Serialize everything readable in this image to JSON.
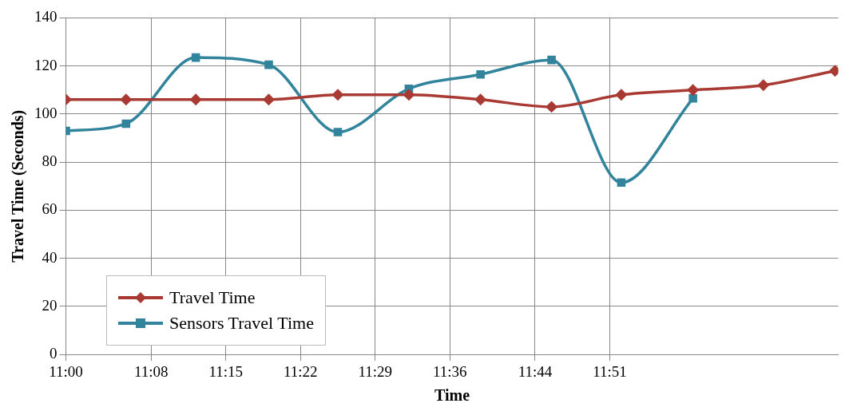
{
  "chart_data": {
    "type": "line",
    "xlabel": "Time",
    "ylabel": "Travel Time (Seconds)",
    "xlim": [
      11,
      12.207
    ],
    "ylim": [
      0,
      140
    ],
    "xticks": [
      {
        "value": 11,
        "label": "11:00"
      },
      {
        "value": 11.1333,
        "label": "11:08"
      },
      {
        "value": 11.25,
        "label": "11:15"
      },
      {
        "value": 11.3667,
        "label": "11:22"
      },
      {
        "value": 11.4833,
        "label": "11:29"
      },
      {
        "value": 11.6,
        "label": "11:36"
      },
      {
        "value": 11.7333,
        "label": "11:44"
      },
      {
        "value": 11.85,
        "label": "11:51"
      }
    ],
    "yticks": [
      0,
      20,
      40,
      60,
      80,
      100,
      120,
      140
    ],
    "grid": true,
    "legend": "bottom left",
    "series": [
      {
        "name": "Travel Time",
        "color": "#a93a33",
        "marker": "diamond",
        "x": [
          11,
          11.094,
          11.203,
          11.317,
          11.425,
          11.536,
          11.648,
          11.759,
          11.868,
          11.98,
          12.09,
          12.202
        ],
        "values": [
          106,
          106,
          106,
          106,
          108,
          108,
          106,
          103,
          108,
          110,
          112,
          118
        ]
      },
      {
        "name": "Sensors Travel Time",
        "color": "#31849b",
        "marker": "square",
        "x": [
          11,
          11.094,
          11.203,
          11.317,
          11.425,
          11.536,
          11.648,
          11.759,
          11.868,
          11.98
        ],
        "values": [
          93,
          96,
          123.5,
          120.5,
          92.5,
          110.5,
          116.5,
          122.5,
          71.5,
          106.5
        ]
      }
    ]
  }
}
